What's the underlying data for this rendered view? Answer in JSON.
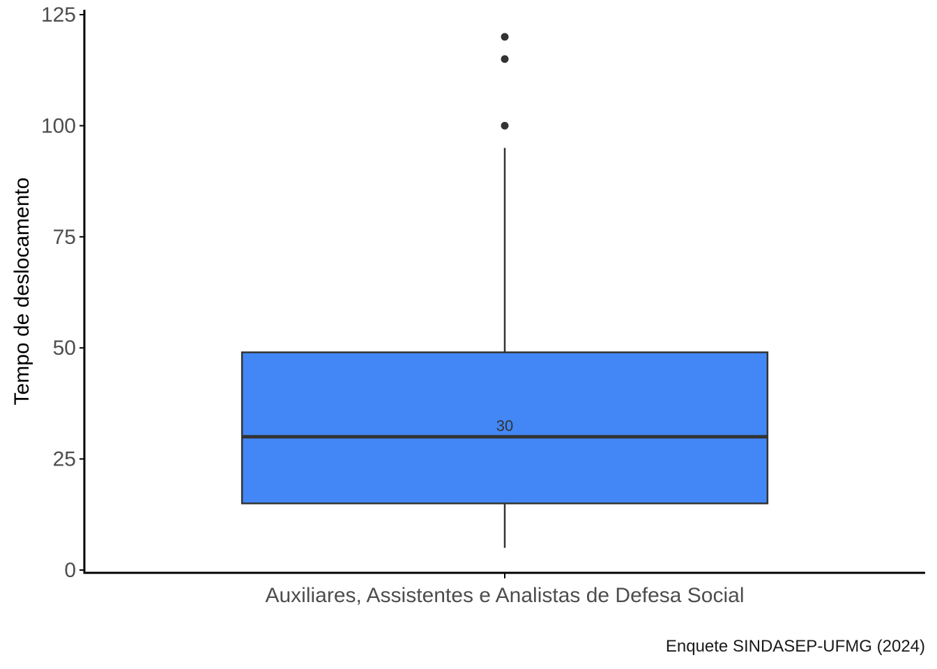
{
  "chart_data": {
    "type": "boxplot",
    "categories": [
      "Auxiliares, Assistentes e Analistas de Defesa Social"
    ],
    "ylabel": "Tempo de deslocamento",
    "xlabel": "",
    "ylim": [
      0,
      125
    ],
    "yticks": [
      0,
      25,
      50,
      75,
      100,
      125
    ],
    "grid": false,
    "boxes": [
      {
        "category": "Auxiliares, Assistentes e Analistas de Defesa Social",
        "whisker_low": 5,
        "q1": 15,
        "median": 30,
        "q3": 49,
        "whisker_high": 95,
        "outliers": [
          100,
          115,
          120
        ],
        "median_label": "30"
      }
    ],
    "colors": {
      "box_fill": "#4287f5",
      "box_stroke": "#333333",
      "axis": "#000000",
      "outlier": "#333333"
    }
  },
  "caption": "Enquete SINDASEP-UFMG (2024)"
}
